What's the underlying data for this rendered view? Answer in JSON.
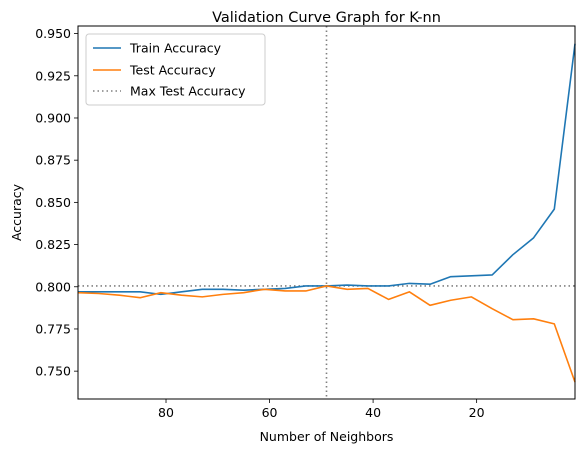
{
  "chart_data": {
    "type": "line",
    "title": "Validation Curve Graph for K-nn",
    "xlabel": "Number of Neighbors",
    "ylabel": "Accuracy",
    "xlim": [
      97,
      1
    ],
    "ylim": [
      0.7335,
      0.9545
    ],
    "x_inverted": true,
    "xticks": [
      80,
      60,
      40,
      20
    ],
    "xtick_labels": [
      "80",
      "60",
      "40",
      "20"
    ],
    "yticks": [
      0.75,
      0.775,
      0.8,
      0.825,
      0.85,
      0.875,
      0.9,
      0.925,
      0.95
    ],
    "ytick_labels": [
      "0.750",
      "0.775",
      "0.800",
      "0.825",
      "0.850",
      "0.875",
      "0.900",
      "0.925",
      "0.950"
    ],
    "grid": false,
    "legend_position": "top-left",
    "x": [
      97,
      93,
      89,
      85,
      81,
      77,
      73,
      69,
      65,
      61,
      57,
      53,
      49,
      45,
      41,
      37,
      33,
      29,
      25,
      21,
      17,
      13,
      9,
      5,
      1
    ],
    "series": [
      {
        "name": "Train Accuracy",
        "color": "#1f77b4",
        "values": [
          0.797,
          0.797,
          0.797,
          0.797,
          0.7955,
          0.797,
          0.7985,
          0.7985,
          0.798,
          0.7985,
          0.799,
          0.8005,
          0.8005,
          0.801,
          0.8005,
          0.8005,
          0.802,
          0.8015,
          0.806,
          0.8065,
          0.807,
          0.819,
          0.829,
          0.846,
          0.944
        ]
      },
      {
        "name": "Test Accuracy",
        "color": "#ff7f0e",
        "values": [
          0.7965,
          0.796,
          0.795,
          0.7935,
          0.7965,
          0.795,
          0.794,
          0.7955,
          0.7965,
          0.7985,
          0.7975,
          0.7975,
          0.8005,
          0.7985,
          0.799,
          0.7925,
          0.797,
          0.789,
          0.792,
          0.794,
          0.787,
          0.7805,
          0.781,
          0.778,
          0.7435
        ]
      }
    ],
    "reference_lines": [
      {
        "name": "Max Test Accuracy",
        "style": "dotted",
        "color": "#808080",
        "vertical_x": 49,
        "horizontal_y": 0.8005
      }
    ]
  }
}
